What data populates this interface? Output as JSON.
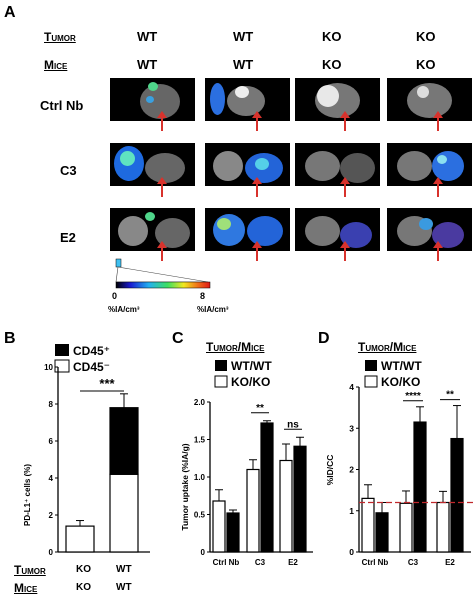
{
  "panel_a": {
    "label": "A",
    "tumor_label": "Tumor",
    "mice_label": "Mice",
    "columns": [
      {
        "tumor": "WT",
        "mice": "WT"
      },
      {
        "tumor": "WT",
        "mice": "WT"
      },
      {
        "tumor": "KO",
        "mice": "KO"
      },
      {
        "tumor": "KO",
        "mice": "KO"
      }
    ],
    "rows": [
      "Ctrl Nb",
      "C3",
      "E2"
    ],
    "scale": {
      "min": "0",
      "max": "8",
      "unit_min": "%IA/cm³",
      "unit_max": "%IA/cm³"
    },
    "colors": {
      "arrow": "#d8322c",
      "scan_bg": "#000000"
    }
  },
  "panel_b": {
    "label": "B",
    "tumor_label": "Tumor",
    "mice_label": "Mice",
    "cond_tumor": [
      "KO",
      "WT"
    ],
    "cond_mice": [
      "KO",
      "WT"
    ],
    "legend": [
      "CD45⁺",
      "CD45⁻"
    ],
    "significance": "***",
    "chart_data": {
      "type": "bar",
      "categories": [
        "KO/KO",
        "WT/WT"
      ],
      "series": [
        {
          "name": "CD45⁻",
          "values": [
            1.4,
            4.2
          ],
          "color": "#ffffff"
        },
        {
          "name": "CD45⁺",
          "values": [
            0.0,
            3.6
          ],
          "color": "#000000"
        }
      ],
      "errors": [
        0.3,
        0.75
      ],
      "ylabel": "PD-L1⁺ cells (%)",
      "ylim": [
        0,
        10
      ],
      "yticks": [
        "0",
        "2",
        "4",
        "6",
        "8",
        "10"
      ],
      "stacked": true
    }
  },
  "panel_c": {
    "label": "C",
    "heading": "Tumor/Mice",
    "legend": [
      "WT/WT",
      "KO/KO"
    ],
    "sig": [
      "**",
      "ns"
    ],
    "chart_data": {
      "type": "bar",
      "categories": [
        "Ctrl Nb",
        "C3",
        "E2"
      ],
      "series": [
        {
          "name": "KO/KO",
          "values": [
            0.68,
            1.1,
            1.22
          ],
          "errors": [
            0.15,
            0.13,
            0.22
          ],
          "color": "#ffffff"
        },
        {
          "name": "WT/WT",
          "values": [
            0.52,
            1.72,
            1.41
          ],
          "errors": [
            0.04,
            0.03,
            0.12
          ],
          "color": "#000000"
        }
      ],
      "ylabel": "Tumor uptake (%IA/g)",
      "ylim": [
        0,
        2
      ],
      "yticks": [
        "0",
        "0.5",
        "1.0",
        "1.5",
        "2.0"
      ]
    }
  },
  "panel_d": {
    "label": "D",
    "heading": "Tumor/Mice",
    "legend": [
      "WT/WT",
      "KO/KO"
    ],
    "sig": [
      "****",
      "**"
    ],
    "chart_data": {
      "type": "bar",
      "categories": [
        "Ctrl Nb",
        "C3",
        "E2"
      ],
      "series": [
        {
          "name": "KO/KO",
          "values": [
            1.3,
            1.18,
            1.2
          ],
          "errors": [
            0.33,
            0.3,
            0.27
          ],
          "color": "#ffffff"
        },
        {
          "name": "WT/WT",
          "values": [
            0.95,
            3.15,
            2.75
          ],
          "errors": [
            0.25,
            0.37,
            0.8
          ],
          "color": "#000000"
        }
      ],
      "reference_line": 1.2,
      "reference_color": "#c0282c",
      "ylabel": "%ID/CC",
      "ylim": [
        0,
        4
      ],
      "yticks": [
        "0",
        "1",
        "2",
        "3",
        "4"
      ]
    }
  }
}
